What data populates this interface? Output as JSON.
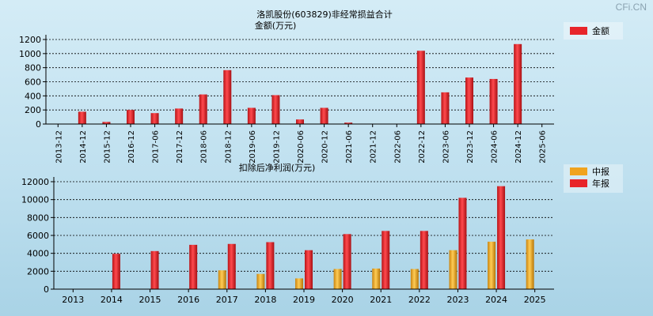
{
  "watermark": "CFi.CN",
  "chart_data": [
    {
      "type": "bar",
      "title": "洛凯股份(603829)非经常损益合计",
      "subtitle": "金额(万元)",
      "categories": [
        "2013-12",
        "2014-12",
        "2015-12",
        "2016-12",
        "2017-06",
        "2017-12",
        "2018-06",
        "2018-12",
        "2019-06",
        "2019-12",
        "2020-06",
        "2020-12",
        "2021-06",
        "2021-12",
        "2022-06",
        "2022-12",
        "2023-06",
        "2023-12",
        "2024-06",
        "2024-12",
        "2025-06"
      ],
      "series": [
        {
          "name": "金额",
          "color": "#e8252a",
          "values": [
            0,
            175,
            30,
            200,
            155,
            220,
            420,
            765,
            230,
            410,
            65,
            230,
            20,
            0,
            0,
            1040,
            450,
            660,
            640,
            1135,
            0
          ]
        }
      ],
      "ylim": [
        0,
        1200
      ],
      "yticks": [
        0,
        200,
        400,
        600,
        800,
        1000,
        1200
      ],
      "grid": true,
      "legend": "top-right"
    },
    {
      "type": "bar",
      "title": "扣除后净利润(万元)",
      "categories": [
        "2013",
        "2014",
        "2015",
        "2016",
        "2017",
        "2018",
        "2019",
        "2020",
        "2021",
        "2022",
        "2023",
        "2024",
        "2025"
      ],
      "series": [
        {
          "name": "中报",
          "color": "#f0a31e",
          "values": [
            null,
            null,
            null,
            null,
            2100,
            1700,
            1200,
            2250,
            2300,
            2250,
            4350,
            5300,
            5550
          ]
        },
        {
          "name": "年报",
          "color": "#e8252a",
          "values": [
            null,
            3950,
            4250,
            4950,
            5050,
            5250,
            4350,
            6150,
            6500,
            6500,
            10200,
            11500,
            null
          ]
        }
      ],
      "ylim": [
        0,
        12000
      ],
      "yticks": [
        0,
        2000,
        4000,
        6000,
        8000,
        10000,
        12000
      ],
      "grid": true,
      "legend": "top-right"
    }
  ]
}
